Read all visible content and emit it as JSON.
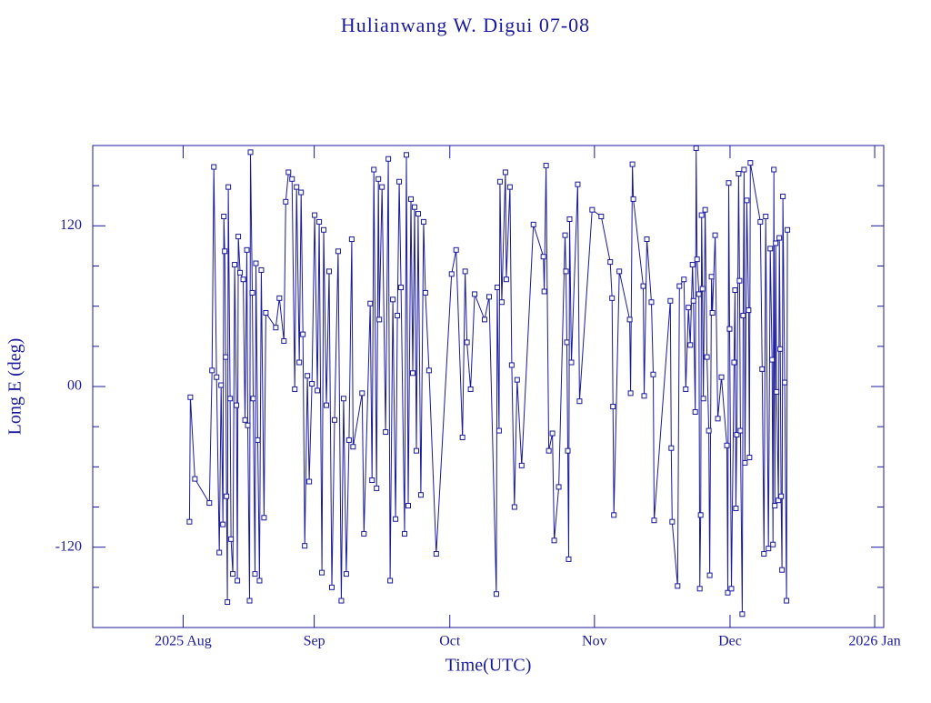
{
  "chart_data": {
    "type": "line",
    "title": "Hulianwang W. Digui 07-08",
    "xlabel": "Time(UTC)",
    "ylabel": "Long E (deg)",
    "xlim": [
      -20,
      155
    ],
    "xticks": [
      {
        "value": 0,
        "label": "2025 Aug"
      },
      {
        "value": 29,
        "label": "Sep"
      },
      {
        "value": 59,
        "label": "Oct"
      },
      {
        "value": 91,
        "label": "Nov"
      },
      {
        "value": 121,
        "label": "Dec"
      },
      {
        "value": 153,
        "label": "2026 Jan"
      }
    ],
    "ylim": [
      -180,
      180
    ],
    "yticks": [
      -120,
      {
        "value": 0,
        "label": "00"
      },
      120
    ],
    "yminor": [
      -150,
      -90,
      -60,
      -30,
      30,
      60,
      90,
      150
    ],
    "x": [
      1.4,
      1.6,
      2.6,
      5.8,
      6.4,
      6.8,
      7.4,
      8,
      8.4,
      8.8,
      9,
      9.2,
      9.4,
      9.6,
      9.8,
      10,
      10.4,
      10.6,
      11,
      11.4,
      11.8,
      12,
      12.2,
      12.6,
      13.3,
      13.7,
      14.1,
      14.3,
      14.7,
      14.9,
      15.3,
      15.5,
      15.9,
      16.1,
      16.5,
      16.9,
      17.3,
      17.9,
      18.3,
      20.5,
      21.3,
      22.3,
      22.7,
      23.3,
      24.1,
      24.7,
      25.1,
      25.7,
      26.1,
      26.5,
      26.9,
      27.5,
      27.9,
      28.5,
      29.1,
      29.7,
      30.1,
      30.7,
      31.1,
      31.7,
      32.3,
      32.9,
      33.5,
      34.3,
      35,
      35.5,
      36.1,
      36.7,
      37.3,
      37.6,
      39.6,
      40,
      41.4,
      41.8,
      42.2,
      42.8,
      43.2,
      43.4,
      44,
      44.8,
      45.4,
      45.8,
      46.4,
      47,
      47.4,
      47.8,
      48.2,
      49,
      49.4,
      49.8,
      50.4,
      50.8,
      51.2,
      51.6,
      52,
      52.6,
      53.2,
      53.6,
      54.4,
      56,
      59.4,
      60.4,
      61.8,
      62.4,
      62.8,
      63.6,
      64.5,
      66.7,
      67.7,
      69.3,
      69.5,
      69.9,
      70.1,
      70.5,
      71.3,
      71.5,
      72.3,
      72.7,
      73.3,
      73.9,
      74.9,
      77.5,
      79.7,
      79.9,
      80.3,
      80.9,
      81.7,
      82.1,
      83.1,
      84.5,
      84.7,
      84.9,
      85.1,
      85.3,
      85.5,
      85.9,
      87.3,
      87.7,
      90.5,
      92.5,
      94.5,
      94.9,
      95.1,
      95.3,
      96.5,
      98.8,
      99,
      99.4,
      99.6,
      101.8,
      102,
      102.6,
      103.6,
      104,
      104.2,
      107.8,
      108,
      108.2,
      109.4,
      109.8,
      110.8,
      111.2,
      111.8,
      112.2,
      112.7,
      112.9,
      113.3,
      113.5,
      113.7,
      114.1,
      114.3,
      114.5,
      114.7,
      114.9,
      115.1,
      115.5,
      115.9,
      116.3,
      116.5,
      116.9,
      117.1,
      117.7,
      118.3,
      119.1,
      120.3,
      120.5,
      120.7,
      120.9,
      121.3,
      121.9,
      122.1,
      122.3,
      122.5,
      122.9,
      123.1,
      123.3,
      123.7,
      123.9,
      124.1,
      124.3,
      124.7,
      125.1,
      125.3,
      125.5,
      127.7,
      128.1,
      128.5,
      128.9,
      129.5,
      129.9,
      130.3,
      130.5,
      130.7,
      130.9,
      131.1,
      131.3,
      131.7,
      131.9,
      132.1,
      132.3,
      132.5,
      132.7,
      133.1,
      133.5,
      133.7
    ],
    "series": [
      {
        "color": "#1a1a9c",
        "values": [
          -101,
          -8,
          -69,
          -87,
          12,
          164,
          7,
          -124,
          1,
          -103,
          127,
          101,
          22,
          -82,
          -161,
          149,
          -9,
          -114,
          -140,
          91,
          -14,
          -145,
          112,
          85,
          80,
          -25,
          102,
          -29,
          -160,
          175,
          70,
          -9,
          -140,
          92,
          -40,
          -145,
          87,
          -98,
          55,
          44,
          66,
          34,
          138,
          160,
          155,
          -2,
          149,
          18,
          145,
          39,
          -119,
          8,
          -71,
          2,
          128,
          -3,
          123,
          -139,
          117,
          -14,
          86,
          -150,
          -25,
          101,
          -160,
          -9,
          -140,
          -40,
          110,
          -45,
          -5,
          -110,
          62,
          -70,
          162,
          -76,
          155,
          50,
          149,
          -34,
          170,
          -145,
          65,
          -99,
          53,
          153,
          74,
          -110,
          173,
          -89,
          140,
          10,
          134,
          -48,
          129,
          -81,
          123,
          70,
          12,
          -125,
          84,
          102,
          -38,
          86,
          33,
          -2,
          69,
          50,
          67,
          -155,
          74,
          -33,
          153,
          63,
          160,
          80,
          149,
          16,
          -90,
          5,
          -59,
          121,
          97,
          71,
          165,
          -48,
          -35,
          -115,
          -75,
          113,
          86,
          33,
          -48,
          -129,
          125,
          18,
          151,
          -11,
          132,
          127,
          93,
          66,
          -15,
          -96,
          86,
          50,
          -5,
          166,
          140,
          75,
          -7,
          110,
          63,
          9,
          -100,
          64,
          -46,
          -101,
          -149,
          75,
          80,
          -2,
          59,
          31,
          91,
          64,
          -19,
          178,
          95,
          69,
          -151,
          -96,
          128,
          73,
          -9,
          132,
          22,
          -33,
          -141,
          82,
          55,
          113,
          -24,
          7,
          -44,
          -154,
          152,
          43,
          -151,
          18,
          72,
          -91,
          -36,
          159,
          79,
          -33,
          -170,
          53,
          162,
          -57,
          139,
          57,
          -53,
          167,
          123,
          13,
          -125,
          127,
          -121,
          103,
          20,
          -118,
          162,
          -89,
          107,
          -4,
          -85,
          111,
          28,
          -82,
          -137,
          142,
          3,
          -160,
          117
        ]
      }
    ]
  }
}
